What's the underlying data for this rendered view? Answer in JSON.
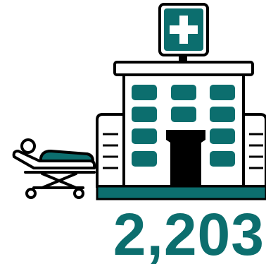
{
  "stat": {
    "value": "2,203",
    "icon": "hospital-icon",
    "secondary_icon": "stretcher-icon"
  },
  "colors": {
    "accent": "#0c6e6e",
    "outline": "#000000",
    "background": "#ffffff"
  }
}
